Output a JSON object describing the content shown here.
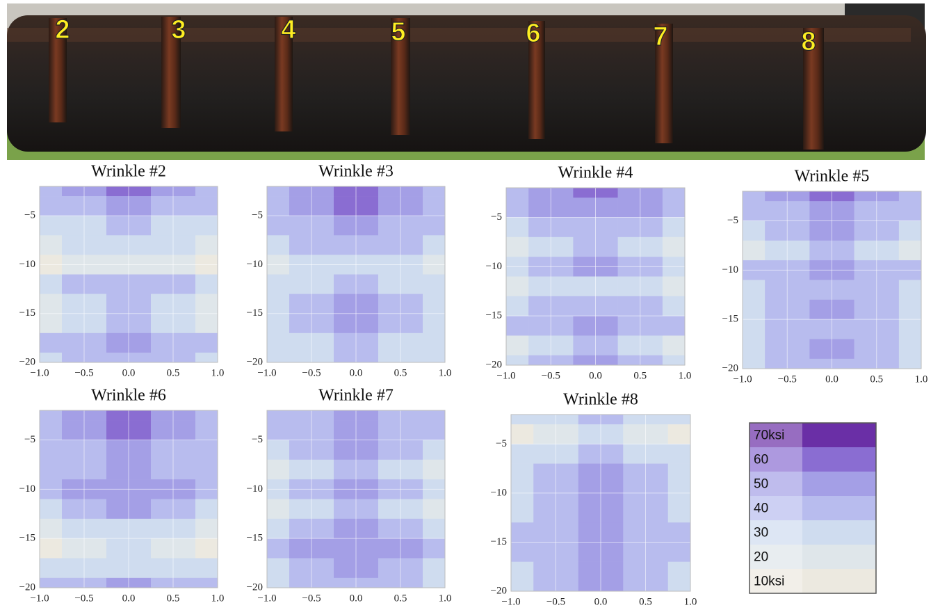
{
  "photo": {
    "labels": [
      "2",
      "3",
      "4",
      "5",
      "6",
      "7",
      "8"
    ]
  },
  "legend": {
    "levels": [
      {
        "value": 70,
        "label": "70ksi"
      },
      60,
      50,
      40,
      30,
      20,
      {
        "value": 10,
        "label": "10ksi"
      }
    ],
    "colors": [
      "#6a2fa6",
      "#8a6dd2",
      "#a49fe6",
      "#b8bcee",
      "#cfdcef",
      "#dfe6ea",
      "#ece9e0"
    ]
  },
  "chart_data": [
    {
      "type": "contour",
      "title": "Wrinkle #2",
      "x": [
        -1,
        -0.5,
        0,
        0.5,
        1
      ],
      "y": [
        -2,
        -4,
        -6,
        -8,
        -10,
        -12,
        -14,
        -16,
        -18,
        -20
      ],
      "z": [
        [
          45,
          55,
          65,
          55,
          45
        ],
        [
          42,
          48,
          55,
          48,
          42
        ],
        [
          32,
          38,
          42,
          38,
          32
        ],
        [
          25,
          32,
          35,
          32,
          25
        ],
        [
          15,
          25,
          28,
          25,
          15
        ],
        [
          32,
          42,
          45,
          42,
          32
        ],
        [
          28,
          35,
          42,
          35,
          28
        ],
        [
          25,
          35,
          45,
          35,
          25
        ],
        [
          40,
          45,
          55,
          45,
          40
        ],
        [
          38,
          42,
          45,
          42,
          38
        ]
      ],
      "xlim": [
        -1,
        1
      ],
      "ylim": [
        -20,
        -2
      ],
      "xticks": [
        {
          "value": -1,
          "label": "−1.0"
        },
        {
          "value": -0.5,
          "label": "−0.5"
        },
        {
          "value": 0,
          "label": "0.0"
        },
        0.5,
        {
          "value": 1,
          "label": "1.0"
        }
      ],
      "yticks": [
        {
          "value": -5,
          "label": "−5"
        },
        {
          "value": -10,
          "label": "−10"
        },
        {
          "value": -15,
          "label": "−15"
        },
        {
          "value": -20,
          "label": "−20"
        }
      ]
    },
    {
      "type": "contour",
      "title": "Wrinkle #3",
      "x": [
        -1,
        -0.5,
        0,
        0.5,
        1
      ],
      "y": [
        -2,
        -4,
        -6,
        -8,
        -10,
        -12,
        -14,
        -16,
        -18,
        -20
      ],
      "z": [
        [
          45,
          55,
          65,
          55,
          45
        ],
        [
          45,
          52,
          65,
          52,
          45
        ],
        [
          40,
          45,
          55,
          45,
          40
        ],
        [
          32,
          40,
          45,
          40,
          32
        ],
        [
          22,
          32,
          38,
          32,
          22
        ],
        [
          32,
          38,
          42,
          38,
          32
        ],
        [
          38,
          45,
          52,
          45,
          38
        ],
        [
          35,
          45,
          55,
          45,
          35
        ],
        [
          32,
          38,
          45,
          38,
          32
        ],
        [
          30,
          35,
          40,
          35,
          30
        ]
      ],
      "xlim": [
        -1,
        1
      ],
      "ylim": [
        -20,
        -2
      ],
      "xticks": [
        {
          "value": -1,
          "label": "−1.0"
        },
        {
          "value": -0.5,
          "label": "−0.5"
        },
        {
          "value": 0,
          "label": "0.0"
        },
        0.5,
        {
          "value": 1,
          "label": "1.0"
        }
      ],
      "yticks": [
        {
          "value": -5,
          "label": "−5"
        },
        {
          "value": -10,
          "label": "−10"
        },
        {
          "value": -15,
          "label": "−15"
        },
        {
          "value": -20,
          "label": "−20"
        }
      ]
    },
    {
      "type": "contour",
      "title": "Wrinkle #4",
      "x": [
        -1,
        -0.5,
        0,
        0.5,
        1
      ],
      "y": [
        -2,
        -4,
        -6,
        -8,
        -10,
        -12,
        -14,
        -16,
        -18,
        -20
      ],
      "z": [
        [
          48,
          55,
          65,
          55,
          48
        ],
        [
          42,
          50,
          55,
          50,
          42
        ],
        [
          32,
          40,
          48,
          40,
          32
        ],
        [
          28,
          35,
          42,
          35,
          28
        ],
        [
          35,
          45,
          52,
          45,
          35
        ],
        [
          22,
          32,
          38,
          32,
          22
        ],
        [
          35,
          42,
          48,
          42,
          35
        ],
        [
          40,
          48,
          58,
          48,
          40
        ],
        [
          22,
          32,
          40,
          32,
          22
        ],
        [
          35,
          42,
          50,
          42,
          35
        ]
      ],
      "xlim": [
        -1,
        1
      ],
      "ylim": [
        -20,
        -2
      ],
      "xticks": [
        {
          "value": -1,
          "label": "−1.0"
        },
        {
          "value": -0.5,
          "label": "−0.5"
        },
        {
          "value": 0,
          "label": "0.0"
        },
        0.5,
        {
          "value": 1,
          "label": "1.0"
        }
      ],
      "yticks": [
        {
          "value": -5,
          "label": "−5"
        },
        {
          "value": -10,
          "label": "−10"
        },
        {
          "value": -15,
          "label": "−15"
        },
        {
          "value": -20,
          "label": "−20"
        }
      ]
    },
    {
      "type": "contour",
      "title": "Wrinkle #5",
      "x": [
        -1,
        -0.5,
        0,
        0.5,
        1
      ],
      "y": [
        -2,
        -4,
        -6,
        -8,
        -10,
        -12,
        -14,
        -16,
        -18,
        -20
      ],
      "z": [
        [
          45,
          50,
          62,
          50,
          45
        ],
        [
          42,
          45,
          55,
          45,
          42
        ],
        [
          38,
          45,
          52,
          45,
          38
        ],
        [
          25,
          35,
          40,
          35,
          25
        ],
        [
          42,
          48,
          55,
          48,
          42
        ],
        [
          38,
          42,
          48,
          42,
          38
        ],
        [
          35,
          42,
          52,
          42,
          35
        ],
        [
          32,
          40,
          45,
          40,
          32
        ],
        [
          38,
          45,
          52,
          45,
          38
        ],
        [
          38,
          42,
          45,
          42,
          38
        ]
      ],
      "xlim": [
        -1,
        1
      ],
      "ylim": [
        -20,
        -2
      ],
      "xticks": [
        {
          "value": -1,
          "label": "−1.0"
        },
        {
          "value": -0.5,
          "label": "−0.5"
        },
        {
          "value": 0,
          "label": "0.0"
        },
        0.5,
        {
          "value": 1,
          "label": "1.0"
        }
      ],
      "yticks": [
        {
          "value": -5,
          "label": "−5"
        },
        {
          "value": -10,
          "label": "−10"
        },
        {
          "value": -15,
          "label": "−15"
        },
        {
          "value": -20,
          "label": "−20"
        }
      ]
    },
    {
      "type": "contour",
      "title": "Wrinkle #6",
      "x": [
        -1,
        -0.5,
        0,
        0.5,
        1
      ],
      "y": [
        -2,
        -4,
        -6,
        -8,
        -10,
        -12,
        -14,
        -16,
        -18,
        -20
      ],
      "z": [
        [
          45,
          55,
          65,
          55,
          45
        ],
        [
          45,
          52,
          62,
          52,
          45
        ],
        [
          40,
          48,
          52,
          48,
          40
        ],
        [
          40,
          45,
          52,
          45,
          40
        ],
        [
          40,
          52,
          55,
          52,
          40
        ],
        [
          38,
          45,
          52,
          45,
          38
        ],
        [
          25,
          32,
          35,
          32,
          25
        ],
        [
          15,
          25,
          30,
          25,
          15
        ],
        [
          32,
          35,
          38,
          35,
          32
        ],
        [
          42,
          45,
          52,
          45,
          42
        ]
      ],
      "xlim": [
        -1,
        1
      ],
      "ylim": [
        -20,
        -2
      ],
      "xticks": [
        {
          "value": -1,
          "label": "−1.0"
        },
        {
          "value": -0.5,
          "label": "−0.5"
        },
        {
          "value": 0,
          "label": "0.0"
        },
        0.5,
        {
          "value": 1,
          "label": "1.0"
        }
      ],
      "yticks": [
        {
          "value": -5,
          "label": "−5"
        },
        {
          "value": -10,
          "label": "−10"
        },
        {
          "value": -15,
          "label": "−15"
        },
        {
          "value": -20,
          "label": "−20"
        }
      ]
    },
    {
      "type": "contour",
      "title": "Wrinkle #7",
      "x": [
        -1,
        -0.5,
        0,
        0.5,
        1
      ],
      "y": [
        -2,
        -4,
        -6,
        -8,
        -10,
        -12,
        -14,
        -16,
        -18,
        -20
      ],
      "z": [
        [
          42,
          48,
          52,
          48,
          42
        ],
        [
          42,
          48,
          52,
          48,
          42
        ],
        [
          38,
          45,
          52,
          45,
          38
        ],
        [
          25,
          38,
          45,
          38,
          25
        ],
        [
          35,
          45,
          55,
          45,
          35
        ],
        [
          25,
          38,
          42,
          38,
          25
        ],
        [
          38,
          45,
          52,
          45,
          38
        ],
        [
          40,
          52,
          55,
          52,
          40
        ],
        [
          38,
          48,
          52,
          48,
          38
        ],
        [
          35,
          42,
          45,
          42,
          35
        ]
      ],
      "xlim": [
        -1,
        1
      ],
      "ylim": [
        -20,
        -2
      ],
      "xticks": [
        {
          "value": -1,
          "label": "−1.0"
        },
        {
          "value": -0.5,
          "label": "−0.5"
        },
        {
          "value": 0,
          "label": "0.0"
        },
        0.5,
        {
          "value": 1,
          "label": "1.0"
        }
      ],
      "yticks": [
        {
          "value": -5,
          "label": "−5"
        },
        {
          "value": -10,
          "label": "−10"
        },
        {
          "value": -15,
          "label": "−15"
        },
        {
          "value": -20,
          "label": "−20"
        }
      ]
    },
    {
      "type": "contour",
      "title": "Wrinkle #8",
      "x": [
        -1,
        -0.5,
        0,
        0.5,
        1
      ],
      "y": [
        -2,
        -4,
        -6,
        -8,
        -10,
        -12,
        -14,
        -16,
        -18,
        -20
      ],
      "z": [
        [
          30,
          35,
          42,
          35,
          30
        ],
        [
          15,
          25,
          32,
          25,
          15
        ],
        [
          30,
          35,
          42,
          35,
          30
        ],
        [
          35,
          42,
          52,
          42,
          35
        ],
        [
          38,
          45,
          52,
          45,
          38
        ],
        [
          38,
          48,
          52,
          48,
          38
        ],
        [
          40,
          48,
          52,
          48,
          40
        ],
        [
          40,
          48,
          55,
          48,
          40
        ],
        [
          38,
          45,
          52,
          45,
          38
        ],
        [
          38,
          42,
          52,
          42,
          38
        ]
      ],
      "xlim": [
        -1,
        1
      ],
      "ylim": [
        -20,
        -2
      ],
      "xticks": [
        {
          "value": -1,
          "label": "−1.0"
        },
        {
          "value": -0.5,
          "label": "−0.5"
        },
        {
          "value": 0,
          "label": "0.0"
        },
        0.5,
        {
          "value": 1,
          "label": "1.0"
        }
      ],
      "yticks": [
        {
          "value": -5,
          "label": "−5"
        },
        {
          "value": -10,
          "label": "−10"
        },
        {
          "value": -15,
          "label": "−15"
        },
        {
          "value": -20,
          "label": "−20"
        }
      ]
    }
  ]
}
